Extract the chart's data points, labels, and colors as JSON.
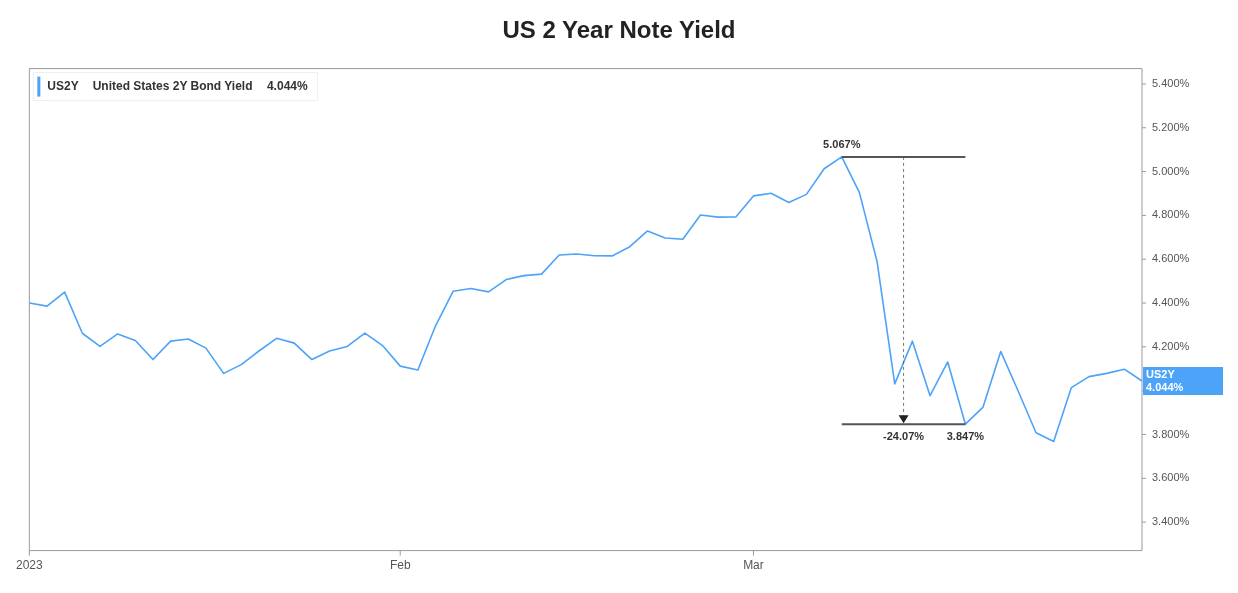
{
  "chart_data": {
    "type": "line",
    "title": "US 2 Year Note Yield",
    "categories": [
      "2023",
      null,
      null,
      null,
      null,
      null,
      null,
      null,
      null,
      null,
      null,
      null,
      null,
      null,
      null,
      null,
      null,
      null,
      null,
      null,
      null,
      "Feb",
      null,
      null,
      null,
      null,
      null,
      null,
      null,
      null,
      null,
      null,
      null,
      null,
      null,
      null,
      null,
      null,
      null,
      null,
      null,
      "Mar",
      null,
      null,
      null,
      null,
      null,
      null,
      null,
      null,
      null,
      null,
      null,
      null,
      null,
      null,
      null,
      null,
      null,
      null,
      null,
      null,
      null,
      null
    ],
    "series": [
      {
        "name": "US2Y",
        "color": "#4da3f7",
        "values": [
          4.4,
          4.386,
          4.45,
          4.262,
          4.202,
          4.259,
          4.229,
          4.142,
          4.226,
          4.236,
          4.194,
          4.079,
          4.119,
          4.181,
          4.239,
          4.217,
          4.142,
          4.181,
          4.202,
          4.263,
          4.206,
          4.112,
          4.094,
          4.296,
          4.454,
          4.466,
          4.451,
          4.507,
          4.525,
          4.532,
          4.619,
          4.624,
          4.616,
          4.615,
          4.657,
          4.729,
          4.697,
          4.691,
          4.802,
          4.792,
          4.793,
          4.889,
          4.901,
          4.859,
          4.896,
          5.013,
          5.067,
          4.904,
          4.589,
          4.031,
          4.226,
          3.977,
          4.131,
          3.847,
          3.925,
          4.179,
          3.996,
          3.808,
          3.768,
          4.014,
          4.064,
          4.079,
          4.098,
          4.044
        ],
        "value_labels": [
          null,
          null,
          null,
          null,
          null,
          null,
          null,
          null,
          null,
          null,
          null,
          null,
          null,
          null,
          null,
          null,
          null,
          null,
          null,
          null,
          null,
          null,
          null,
          null,
          null,
          null,
          null,
          null,
          null,
          null,
          null,
          null,
          null,
          null,
          null,
          null,
          null,
          null,
          null,
          null,
          null,
          null,
          null,
          null,
          null,
          null,
          null,
          null,
          null,
          null,
          null,
          null,
          null,
          null,
          null,
          null,
          null,
          null,
          null,
          null,
          null,
          null,
          null,
          "4.044%"
        ]
      }
    ],
    "legend_title": "United States 2Y Bond Yield",
    "legend": "top left",
    "ylim": [
      3.27,
      5.47
    ],
    "yticks": [
      {
        "value": 3.4,
        "label": "3.400%"
      },
      {
        "value": 3.6,
        "label": "3.600%"
      },
      {
        "value": 3.8,
        "label": "3.800%"
      },
      {
        "value": 4.0,
        "label": null
      },
      {
        "value": 4.2,
        "label": "4.200%"
      },
      {
        "value": 4.4,
        "label": "4.400%"
      },
      {
        "value": 4.6,
        "label": "4.600%"
      },
      {
        "value": 4.8,
        "label": "4.800%"
      },
      {
        "value": 5.0,
        "label": "5.000%"
      },
      {
        "value": 5.2,
        "label": "5.200%"
      },
      {
        "value": 5.4,
        "label": "5.400%"
      }
    ],
    "annotations": [
      {
        "text": "5.067%",
        "y": 5.067
      },
      {
        "text": "3.847%",
        "y": 3.847
      },
      "-24.07%"
    ],
    "grid": false,
    "marker": "none",
    "line_style": "solid"
  }
}
